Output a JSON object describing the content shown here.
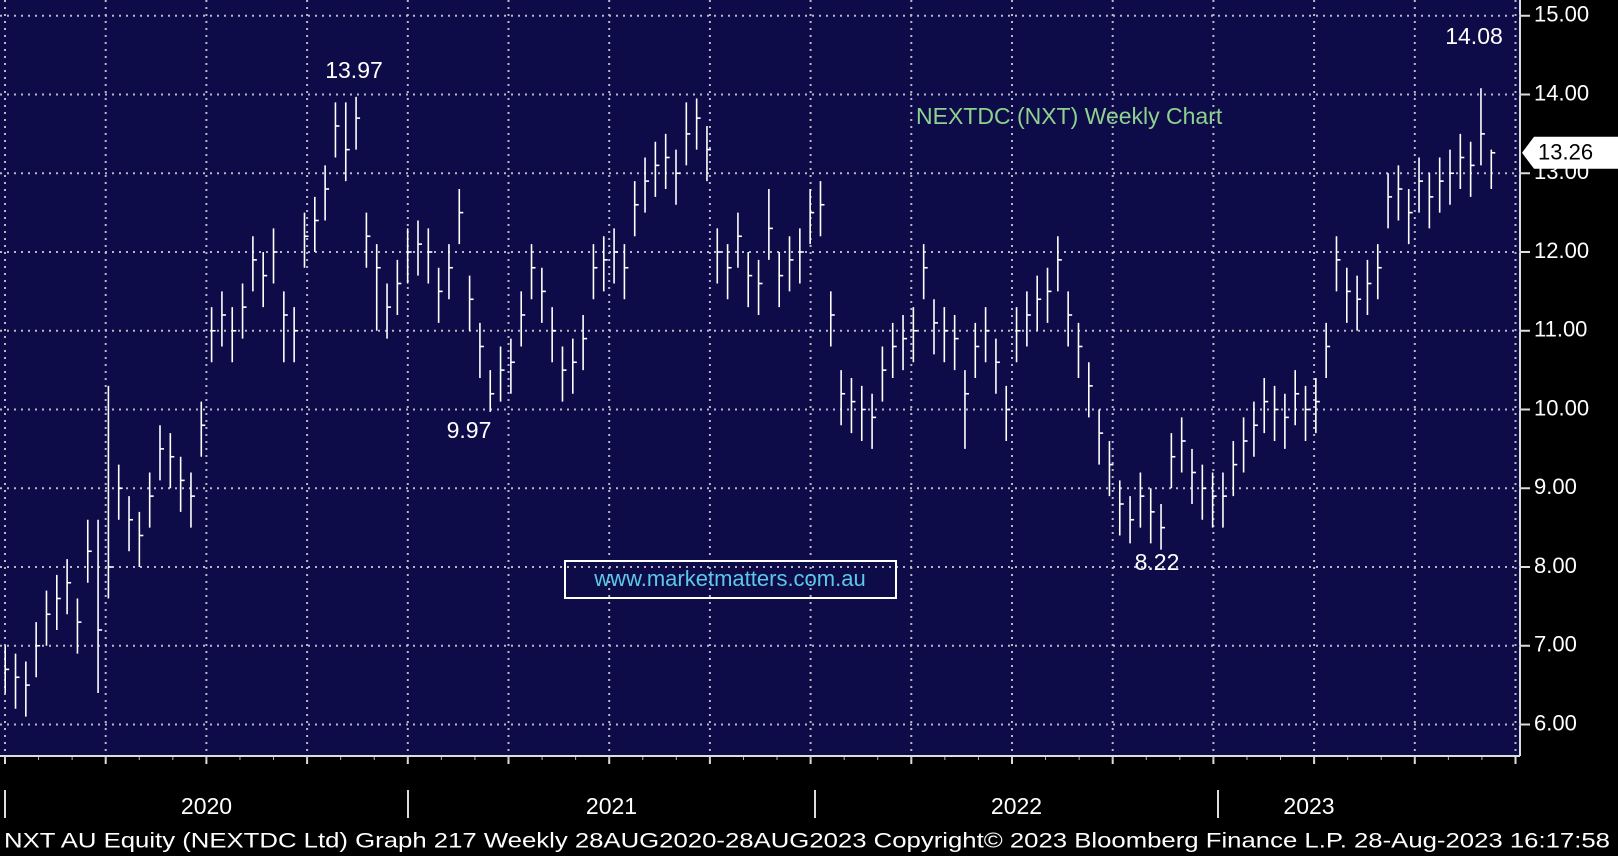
{
  "chart_data": {
    "type": "ohlc",
    "title": "NEXTDC (NXT) Weekly Chart",
    "watermark": "www.marketmatters.com.au",
    "footer": "NXT AU Equity (NEXTDC Ltd) Graph 217  Weekly 28AUG2020-28AUG2023 Copyright© 2023 Bloomberg Finance L.P. 28-Aug-2023 16:17:58",
    "annotations": [
      "13.97",
      "9.97",
      "8.22",
      "14.08"
    ],
    "x_labels": [
      "2020",
      "2021",
      "2022",
      "2023"
    ],
    "color": "#ffffff",
    "grid": true,
    "ylim": [
      5.6,
      15.2
    ],
    "yticks": [
      {
        "value": 6,
        "label": "6.00"
      },
      {
        "value": 7,
        "label": "7.00"
      },
      {
        "value": 8,
        "label": "8.00"
      },
      {
        "value": 9,
        "label": "9.00"
      },
      {
        "value": 10,
        "label": "10.00"
      },
      {
        "value": 11,
        "label": "11.00"
      },
      {
        "value": 12,
        "label": "12.00"
      },
      {
        "value": 13,
        "label": "13.00"
      },
      {
        "value": 14,
        "label": "14.00"
      },
      {
        "value": 15,
        "label": "15.00"
      }
    ],
    "high": [
      7.0,
      6.9,
      6.8,
      7.3,
      7.7,
      7.9,
      8.1,
      7.6,
      8.6,
      8.6,
      10.3,
      9.3,
      8.9,
      8.7,
      9.2,
      9.8,
      9.7,
      9.4,
      9.2,
      10.1,
      11.3,
      11.5,
      11.3,
      11.6,
      12.2,
      12.0,
      12.3,
      11.5,
      11.3,
      12.5,
      12.7,
      13.1,
      13.9,
      13.9,
      13.97,
      12.5,
      12.1,
      11.6,
      11.9,
      12.3,
      12.4,
      12.3,
      11.8,
      12.1,
      12.8,
      11.7,
      11.1,
      10.5,
      10.8,
      10.9,
      11.5,
      12.1,
      11.8,
      11.3,
      10.8,
      10.9,
      11.2,
      12.1,
      12.2,
      12.3,
      12.1,
      12.9,
      13.2,
      13.4,
      13.5,
      13.3,
      13.9,
      13.95,
      13.6,
      12.3,
      12.1,
      12.5,
      12.0,
      11.9,
      12.8,
      12.0,
      12.2,
      12.3,
      12.8,
      12.9,
      11.5,
      10.5,
      10.4,
      10.3,
      10.2,
      10.8,
      11.1,
      11.2,
      11.3,
      12.1,
      11.4,
      11.3,
      11.2,
      10.5,
      11.1,
      11.3,
      10.9,
      10.3,
      11.3,
      11.5,
      11.7,
      11.8,
      12.2,
      11.5,
      11.1,
      10.6,
      10.0,
      9.6,
      9.1,
      8.9,
      9.2,
      9.0,
      8.8,
      9.7,
      9.9,
      9.5,
      9.3,
      9.2,
      9.2,
      9.6,
      9.9,
      10.1,
      10.4,
      10.3,
      10.2,
      10.5,
      10.3,
      10.4,
      11.1,
      12.2,
      11.8,
      11.7,
      11.9,
      12.1,
      13.0,
      13.1,
      12.8,
      13.2,
      13.0,
      13.2,
      13.3,
      13.5,
      13.4,
      14.08,
      13.3
    ],
    "low": [
      6.4,
      6.2,
      6.1,
      6.6,
      7.0,
      7.2,
      7.4,
      6.9,
      7.8,
      6.4,
      7.6,
      8.6,
      8.2,
      8.0,
      8.5,
      9.1,
      9.0,
      8.7,
      8.5,
      9.4,
      10.6,
      10.8,
      10.6,
      10.9,
      11.5,
      11.3,
      11.6,
      10.6,
      10.6,
      11.8,
      12.0,
      12.4,
      13.2,
      12.9,
      13.3,
      11.8,
      11.0,
      10.9,
      11.2,
      11.6,
      11.7,
      11.6,
      11.1,
      11.4,
      12.1,
      11.0,
      10.4,
      9.97,
      10.1,
      10.2,
      10.8,
      11.4,
      11.1,
      10.6,
      10.1,
      10.2,
      10.5,
      11.4,
      11.5,
      11.6,
      11.4,
      12.2,
      12.5,
      12.7,
      12.8,
      12.6,
      13.1,
      13.3,
      12.9,
      11.6,
      11.4,
      11.8,
      11.3,
      11.2,
      11.9,
      11.3,
      11.5,
      11.6,
      12.1,
      12.2,
      10.8,
      9.8,
      9.7,
      9.6,
      9.5,
      10.1,
      10.4,
      10.5,
      10.6,
      11.4,
      10.7,
      10.6,
      10.5,
      9.5,
      10.4,
      10.6,
      10.2,
      9.6,
      10.6,
      10.8,
      11.0,
      11.1,
      11.5,
      10.8,
      10.4,
      9.9,
      9.3,
      8.9,
      8.4,
      8.3,
      8.5,
      8.3,
      8.22,
      9.0,
      9.2,
      8.8,
      8.6,
      8.5,
      8.5,
      8.9,
      9.2,
      9.4,
      9.7,
      9.6,
      9.5,
      9.8,
      9.6,
      9.7,
      10.4,
      11.5,
      11.1,
      11.0,
      11.2,
      11.4,
      12.3,
      12.4,
      12.1,
      12.5,
      12.3,
      12.5,
      12.6,
      12.8,
      12.7,
      13.1,
      12.8
    ],
    "close": [
      6.7,
      6.6,
      6.5,
      7.0,
      7.4,
      7.6,
      7.8,
      7.3,
      8.2,
      7.2,
      8.0,
      9.0,
      8.6,
      8.4,
      8.9,
      9.5,
      9.4,
      9.1,
      8.9,
      9.8,
      11.0,
      11.2,
      11.0,
      11.3,
      11.9,
      11.7,
      12.0,
      11.2,
      11.0,
      12.2,
      12.4,
      12.8,
      13.6,
      13.3,
      13.7,
      12.2,
      11.8,
      11.3,
      11.6,
      12.0,
      12.1,
      12.0,
      11.5,
      11.8,
      12.5,
      11.4,
      10.8,
      10.2,
      10.5,
      10.6,
      11.2,
      11.8,
      11.5,
      11.0,
      10.5,
      10.6,
      10.9,
      11.8,
      11.9,
      12.0,
      11.8,
      12.6,
      12.9,
      13.1,
      13.2,
      13.0,
      13.5,
      13.7,
      13.3,
      12.0,
      11.8,
      12.2,
      11.7,
      11.6,
      12.3,
      11.7,
      11.9,
      12.0,
      12.5,
      12.6,
      11.2,
      10.2,
      10.1,
      10.0,
      9.9,
      10.5,
      10.8,
      10.9,
      11.0,
      11.8,
      11.1,
      11.0,
      10.9,
      10.2,
      10.8,
      11.0,
      10.6,
      10.0,
      11.0,
      11.2,
      11.4,
      11.5,
      11.9,
      11.2,
      10.8,
      10.3,
      9.7,
      9.3,
      8.8,
      8.6,
      8.9,
      8.7,
      8.5,
      9.4,
      9.6,
      9.2,
      9.0,
      8.9,
      8.9,
      9.3,
      9.6,
      9.8,
      10.1,
      10.0,
      9.9,
      10.2,
      10.0,
      10.1,
      10.8,
      11.9,
      11.5,
      11.4,
      11.6,
      11.8,
      12.7,
      12.8,
      12.5,
      12.9,
      12.7,
      12.9,
      13.0,
      13.2,
      13.1,
      13.5,
      13.26
    ]
  }
}
